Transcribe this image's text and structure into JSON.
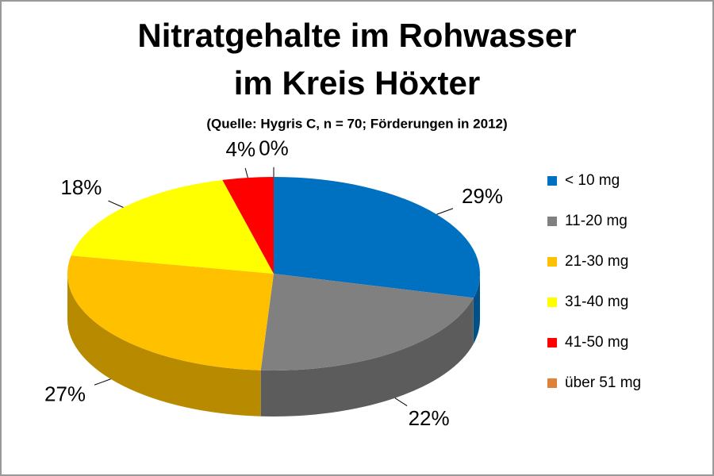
{
  "chart_data": {
    "type": "pie3d",
    "title": [
      "Nitratgehalte im Rohwasser",
      "im Kreis Höxter"
    ],
    "subtitle": "(Quelle: Hygris C, n = 70; Förderungen in 2012)",
    "categories": [
      "< 10 mg",
      "11-20 mg",
      "21-30 mg",
      "31-40 mg",
      "41-50 mg",
      "über 51 mg"
    ],
    "values": [
      29,
      22,
      27,
      18,
      4,
      0
    ],
    "value_labels": [
      "29%",
      "22%",
      "27%",
      "18%",
      "4%",
      "0%"
    ],
    "colors": [
      "#0070c0",
      "#808080",
      "#ffc000",
      "#ffff00",
      "#ff0000",
      "#e0813a"
    ],
    "legend": "right"
  }
}
